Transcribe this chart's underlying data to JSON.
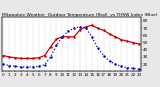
{
  "title": "Milwaukee Weather  Outdoor Temperature (Red)  vs THSW Index (Blue)  per Hour  (24 Hours)",
  "hours": [
    0,
    1,
    2,
    3,
    4,
    5,
    6,
    7,
    8,
    9,
    10,
    11,
    12,
    13,
    14,
    15,
    16,
    17,
    18,
    19,
    20,
    21,
    22,
    23
  ],
  "temp_red": [
    32,
    30,
    29,
    28,
    28,
    28,
    29,
    32,
    44,
    55,
    58,
    58,
    58,
    68,
    72,
    74,
    70,
    67,
    62,
    58,
    54,
    52,
    50,
    48
  ],
  "thsw_blue": [
    20,
    18,
    17,
    16,
    16,
    16,
    17,
    19,
    30,
    46,
    58,
    66,
    70,
    72,
    70,
    58,
    42,
    32,
    24,
    20,
    17,
    15,
    14,
    13
  ],
  "ylim": [
    10,
    85
  ],
  "ytick_right": [
    20,
    30,
    40,
    50,
    60,
    70,
    80
  ],
  "ytick_labels": [
    "20",
    "30",
    "40",
    "50",
    "60",
    "70",
    "80"
  ],
  "xticks": [
    0,
    1,
    2,
    3,
    4,
    5,
    6,
    7,
    8,
    9,
    10,
    11,
    12,
    13,
    14,
    15,
    16,
    17,
    18,
    19,
    20,
    21,
    22,
    23
  ],
  "bg_color": "#e8e8e8",
  "plot_bg": "#ffffff",
  "red_color": "#cc0000",
  "blue_color": "#0000cc",
  "grid_color": "#999999",
  "title_fontsize": 3.2,
  "tick_fontsize": 3.0,
  "line_width": 0.9,
  "marker_size": 1.5
}
